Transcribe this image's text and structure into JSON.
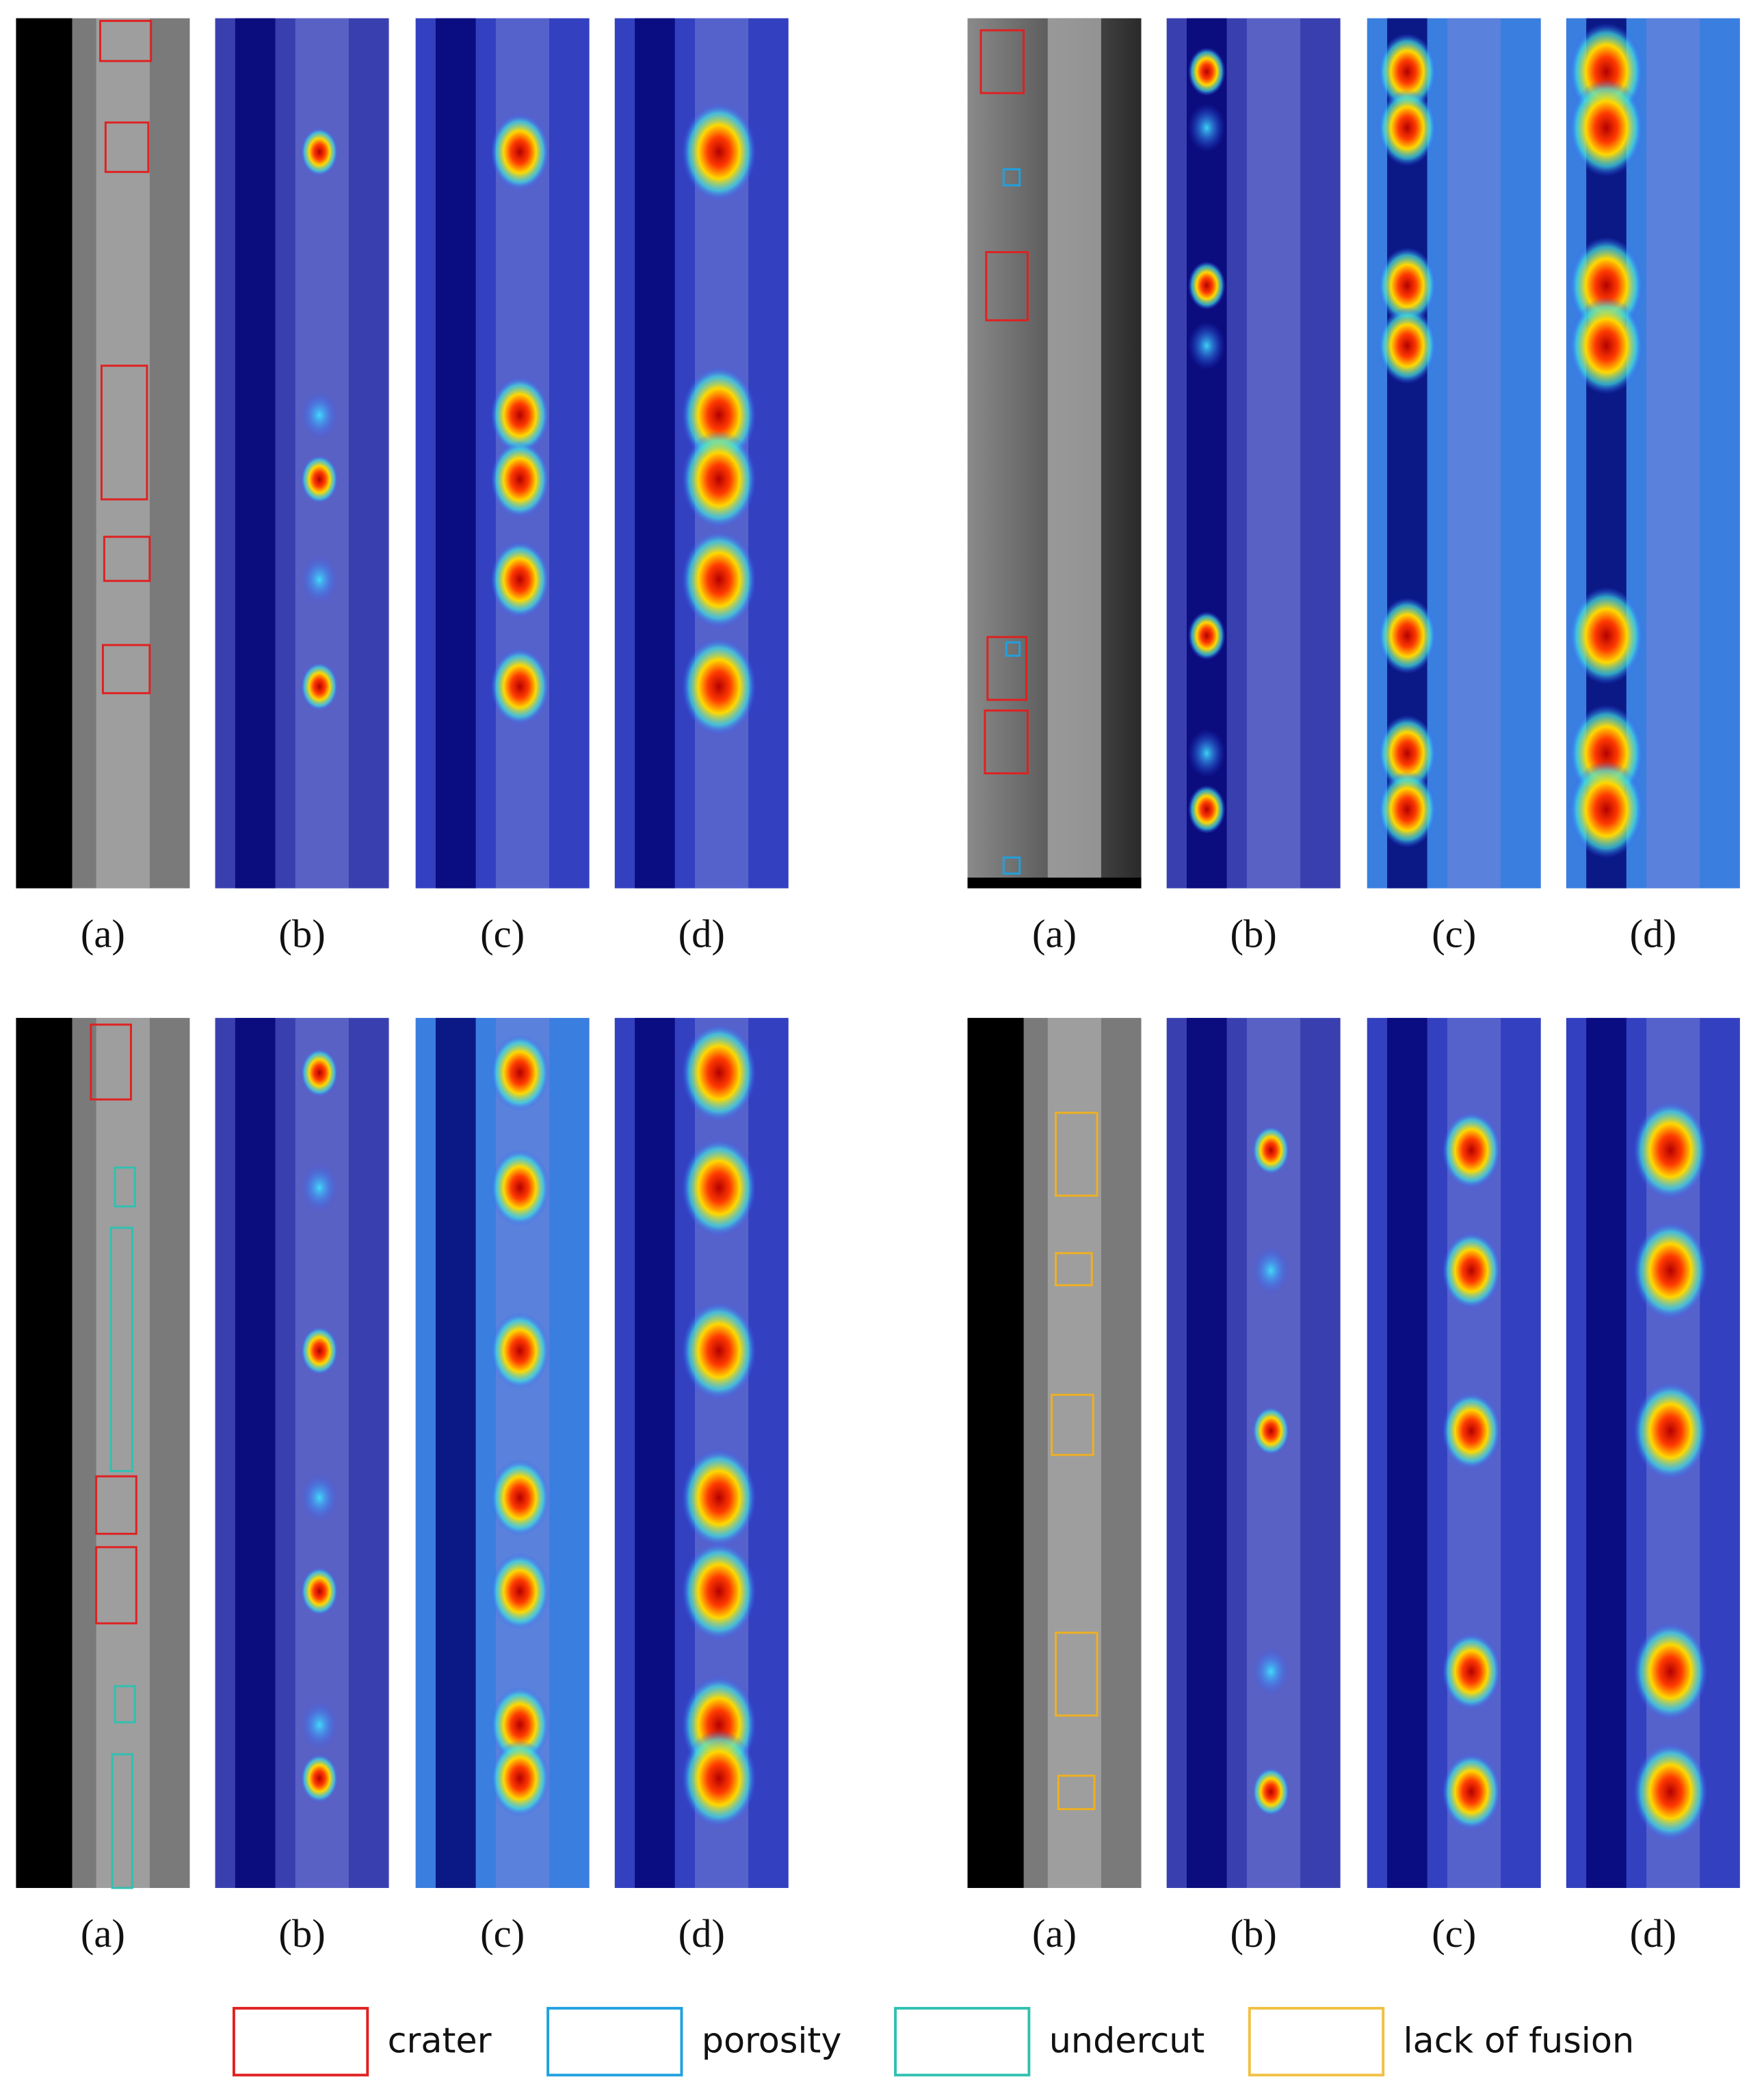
{
  "groups": [
    {
      "panels": [
        "(a)",
        "(b)",
        "(c)",
        "(d)"
      ]
    },
    {
      "panels": [
        "(a)",
        "(b)",
        "(c)",
        "(d)"
      ]
    },
    {
      "panels": [
        "(a)",
        "(b)",
        "(c)",
        "(d)"
      ]
    },
    {
      "panels": [
        "(a)",
        "(b)",
        "(c)",
        "(d)"
      ]
    }
  ],
  "legend": [
    "crater",
    "porosity",
    "undercut",
    "lack of fusion"
  ]
}
